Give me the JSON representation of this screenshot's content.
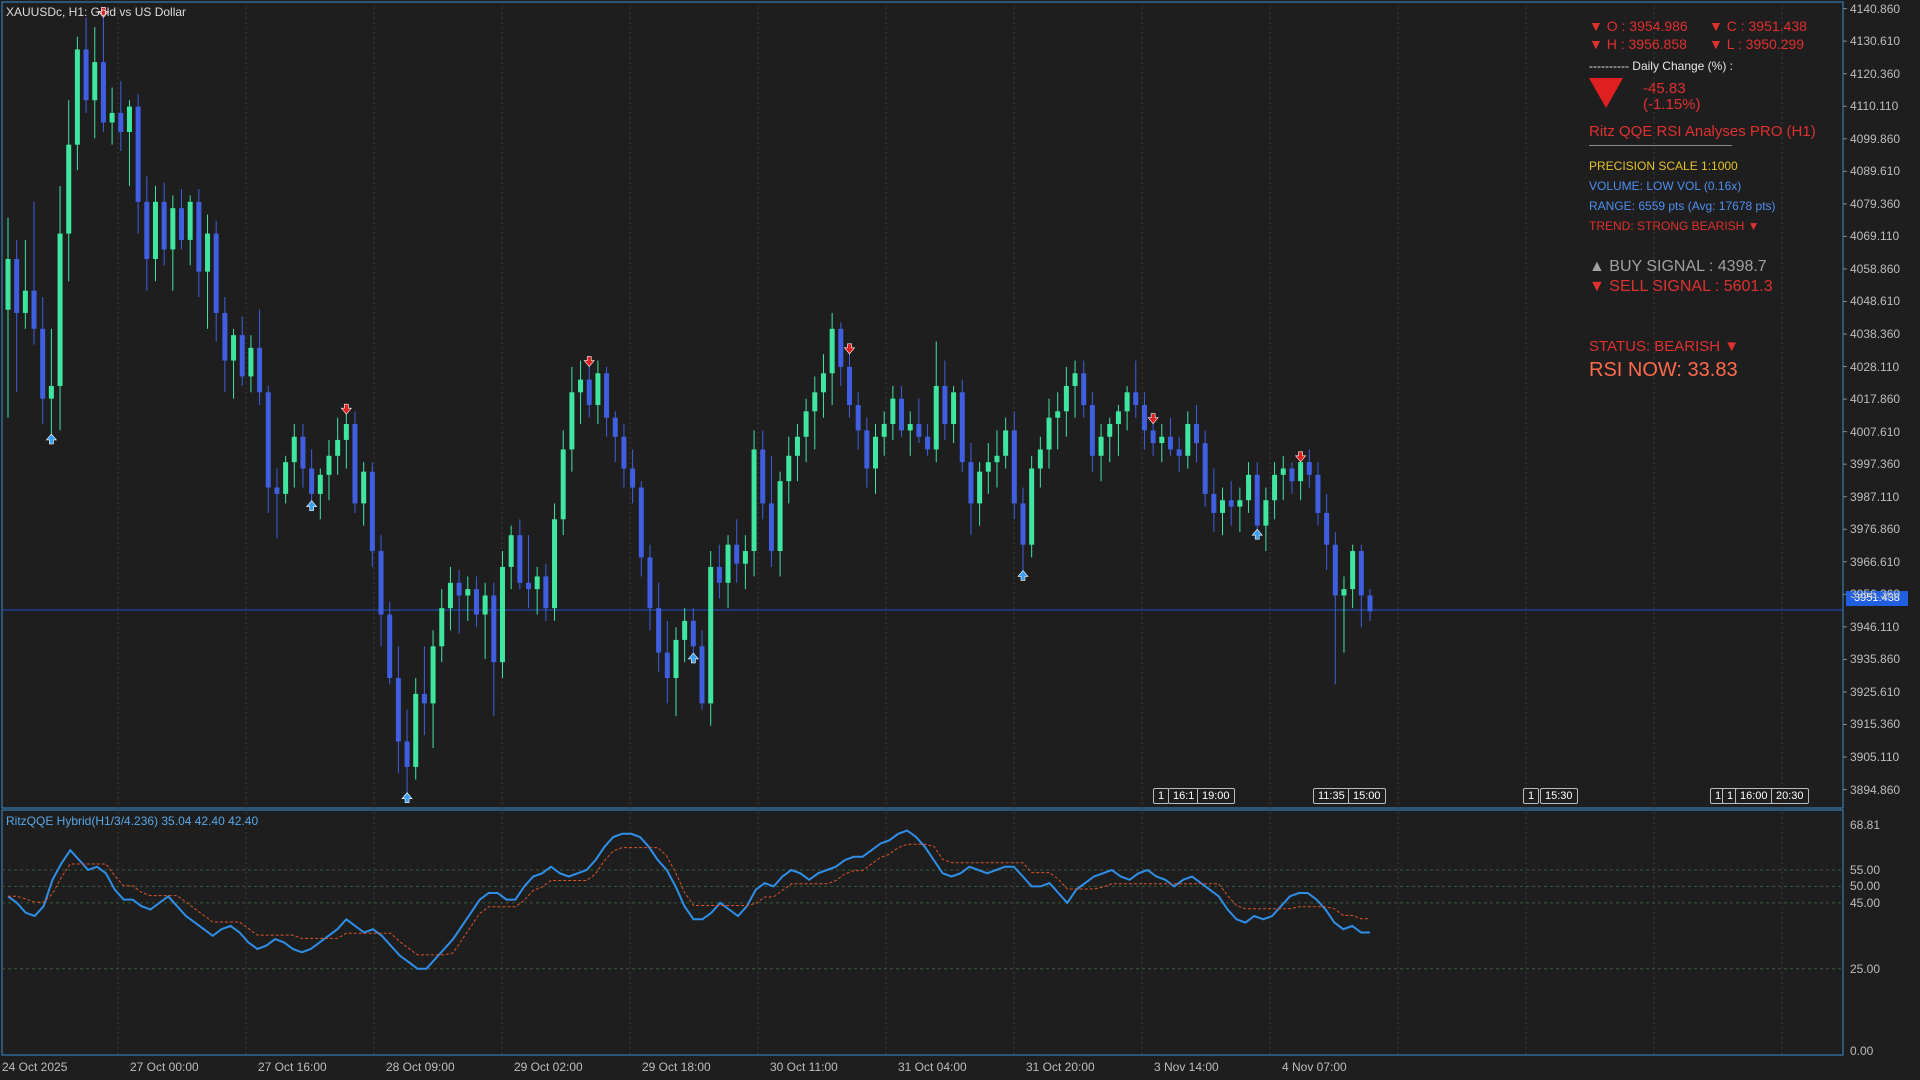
{
  "symbol_title": "XAUUSDc, H1:  Gold vs US Dollar",
  "indicator_title": "RitzQQE Hybrid(H1/3/4.236) 35.04 42.40 42.40",
  "ohlc": {
    "open": "▼ O : 3954.986",
    "close": "▼ C : 3951.438",
    "high": "▼ H : 3956.858",
    "low": "▼ L : 3950.299"
  },
  "daily_change": {
    "label": "----------  Daily Change (%) :",
    "value": "-45.83",
    "percent": "(-1.15%)"
  },
  "panel": {
    "title": "Ritz QQE RSI Analyses PRO (H1)",
    "precision": "PRECISION SCALE 1:1000",
    "volume": "VOLUME: LOW VOL (0.16x)",
    "range": "RANGE: 6559 pts (Avg: 17678 pts)",
    "trend": "TREND: STRONG BEARISH ▼",
    "buy_signal": "▲ BUY SIGNAL : 4398.7",
    "sell_signal": "▼ SELL SIGNAL : 5601.3",
    "status": "STATUS: BEARISH ▼",
    "rsi_now": "RSI NOW: 33.83"
  },
  "current_price": "3951.438",
  "price_ticks": [
    "4140.860",
    "4130.610",
    "4120.360",
    "4110.110",
    "4099.860",
    "4089.610",
    "4079.360",
    "4069.110",
    "4058.860",
    "4048.610",
    "4038.360",
    "4028.110",
    "4017.860",
    "4007.610",
    "3997.360",
    "3987.110",
    "3976.860",
    "3966.610",
    "3956.360",
    "3946.110",
    "3935.860",
    "3925.610",
    "3915.360",
    "3905.110",
    "3894.860"
  ],
  "indicator_ticks": [
    "68.81",
    "55.00",
    "50.00",
    "45.00",
    "25.00",
    "0.00"
  ],
  "time_ticks": [
    "24 Oct 2025",
    "27 Oct 00:00",
    "27 Oct 16:00",
    "28 Oct 09:00",
    "29 Oct 02:00",
    "29 Oct 18:00",
    "30 Oct 11:00",
    "31 Oct 04:00",
    "31 Oct 20:00",
    "3 Nov 14:00",
    "4 Nov 07:00"
  ],
  "event_tags": [
    "1",
    "16:1",
    "19:00",
    "11:35",
    "15:00",
    "1",
    "15:30",
    "1",
    "1",
    "16:00",
    "20:30"
  ],
  "colors": {
    "background": "#1e1e1e",
    "bull": "#3ee6a0",
    "bear": "#3f5fe0",
    "rsi_line": "#2f8fe8",
    "signal_line": "#d9532b",
    "accent_red": "#e03030"
  },
  "chart_data": {
    "type": "candlestick",
    "ylim": [
      3890,
      4142
    ],
    "bars": [
      [
        4046,
        4075,
        4012,
        4062
      ],
      [
        4062,
        4068,
        4020,
        4045
      ],
      [
        4045,
        4068,
        4040,
        4052
      ],
      [
        4052,
        4080,
        4035,
        4040
      ],
      [
        4040,
        4050,
        4010,
        4018
      ],
      [
        4018,
        4040,
        4005,
        4022
      ],
      [
        4022,
        4085,
        4008,
        4070
      ],
      [
        4070,
        4112,
        4055,
        4098
      ],
      [
        4098,
        4132,
        4090,
        4128
      ],
      [
        4128,
        4138,
        4108,
        4112
      ],
      [
        4112,
        4135,
        4100,
        4124
      ],
      [
        4124,
        4140,
        4102,
        4105
      ],
      [
        4105,
        4116,
        4098,
        4108
      ],
      [
        4108,
        4118,
        4096,
        4102
      ],
      [
        4102,
        4112,
        4085,
        4110
      ],
      [
        4110,
        4114,
        4070,
        4080
      ],
      [
        4080,
        4088,
        4052,
        4062
      ],
      [
        4062,
        4085,
        4055,
        4080
      ],
      [
        4080,
        4086,
        4060,
        4065
      ],
      [
        4065,
        4082,
        4052,
        4078
      ],
      [
        4078,
        4084,
        4065,
        4068
      ],
      [
        4068,
        4082,
        4060,
        4080
      ],
      [
        4080,
        4084,
        4050,
        4058
      ],
      [
        4058,
        4076,
        4040,
        4070
      ],
      [
        4070,
        4074,
        4036,
        4045
      ],
      [
        4045,
        4050,
        4020,
        4030
      ],
      [
        4030,
        4040,
        4018,
        4038
      ],
      [
        4038,
        4044,
        4022,
        4025
      ],
      [
        4025,
        4038,
        4020,
        4034
      ],
      [
        4034,
        4046,
        4016,
        4020
      ],
      [
        4020,
        4022,
        3982,
        3990
      ],
      [
        3990,
        3996,
        3974,
        3988
      ],
      [
        3988,
        4000,
        3985,
        3998
      ],
      [
        3998,
        4010,
        3990,
        4006
      ],
      [
        4006,
        4010,
        3990,
        3996
      ],
      [
        3996,
        4002,
        3984,
        3988
      ],
      [
        3988,
        3996,
        3980,
        3994
      ],
      [
        3994,
        4005,
        3986,
        4000
      ],
      [
        4000,
        4012,
        3994,
        4005
      ],
      [
        4005,
        4015,
        3996,
        4010
      ],
      [
        4010,
        4014,
        3982,
        3985
      ],
      [
        3985,
        3998,
        3978,
        3995
      ],
      [
        3995,
        3998,
        3965,
        3970
      ],
      [
        3970,
        3975,
        3940,
        3950
      ],
      [
        3950,
        3954,
        3928,
        3930
      ],
      [
        3930,
        3940,
        3900,
        3910
      ],
      [
        3910,
        3920,
        3892,
        3902
      ],
      [
        3902,
        3930,
        3898,
        3925
      ],
      [
        3925,
        3940,
        3912,
        3922
      ],
      [
        3922,
        3945,
        3908,
        3940
      ],
      [
        3940,
        3958,
        3935,
        3952
      ],
      [
        3952,
        3965,
        3945,
        3960
      ],
      [
        3960,
        3964,
        3944,
        3956
      ],
      [
        3956,
        3962,
        3948,
        3958
      ],
      [
        3958,
        3962,
        3946,
        3950
      ],
      [
        3950,
        3960,
        3936,
        3956
      ],
      [
        3956,
        3960,
        3918,
        3935
      ],
      [
        3935,
        3970,
        3930,
        3965
      ],
      [
        3965,
        3978,
        3958,
        3975
      ],
      [
        3975,
        3980,
        3958,
        3960
      ],
      [
        3960,
        3975,
        3952,
        3958
      ],
      [
        3958,
        3965,
        3950,
        3962
      ],
      [
        3962,
        3966,
        3948,
        3952
      ],
      [
        3952,
        3985,
        3948,
        3980
      ],
      [
        3980,
        4008,
        3975,
        4002
      ],
      [
        4002,
        4028,
        3995,
        4020
      ],
      [
        4020,
        4030,
        4010,
        4024
      ],
      [
        4024,
        4030,
        4012,
        4016
      ],
      [
        4016,
        4030,
        4010,
        4026
      ],
      [
        4026,
        4028,
        4006,
        4012
      ],
      [
        4012,
        4014,
        3998,
        4006
      ],
      [
        4006,
        4010,
        3990,
        3996
      ],
      [
        3996,
        4002,
        3985,
        3990
      ],
      [
        3990,
        3992,
        3962,
        3968
      ],
      [
        3968,
        3972,
        3945,
        3952
      ],
      [
        3952,
        3960,
        3932,
        3938
      ],
      [
        3938,
        3948,
        3922,
        3930
      ],
      [
        3930,
        3946,
        3918,
        3942
      ],
      [
        3942,
        3952,
        3935,
        3948
      ],
      [
        3948,
        3952,
        3936,
        3940
      ],
      [
        3940,
        3945,
        3920,
        3922
      ],
      [
        3922,
        3970,
        3915,
        3965
      ],
      [
        3965,
        3972,
        3955,
        3960
      ],
      [
        3960,
        3975,
        3952,
        3972
      ],
      [
        3972,
        3980,
        3960,
        3966
      ],
      [
        3966,
        3975,
        3958,
        3970
      ],
      [
        3970,
        4008,
        3962,
        4002
      ],
      [
        4002,
        4008,
        3980,
        3985
      ],
      [
        3985,
        4000,
        3965,
        3970
      ],
      [
        3970,
        3995,
        3962,
        3992
      ],
      [
        3992,
        4006,
        3985,
        4000
      ],
      [
        4000,
        4010,
        3992,
        4006
      ],
      [
        4006,
        4018,
        3998,
        4014
      ],
      [
        4014,
        4025,
        4002,
        4020
      ],
      [
        4020,
        4032,
        4012,
        4026
      ],
      [
        4026,
        4045,
        4016,
        4040
      ],
      [
        4040,
        4042,
        4022,
        4028
      ],
      [
        4028,
        4034,
        4012,
        4016
      ],
      [
        4016,
        4020,
        4002,
        4008
      ],
      [
        4008,
        4012,
        3990,
        3996
      ],
      [
        3996,
        4010,
        3988,
        4006
      ],
      [
        4006,
        4014,
        4000,
        4010
      ],
      [
        4010,
        4022,
        4005,
        4018
      ],
      [
        4018,
        4022,
        4006,
        4008
      ],
      [
        4008,
        4014,
        4000,
        4010
      ],
      [
        4010,
        4018,
        4004,
        4006
      ],
      [
        4006,
        4010,
        4000,
        4002
      ],
      [
        4002,
        4036,
        3998,
        4022
      ],
      [
        4022,
        4030,
        4005,
        4010
      ],
      [
        4010,
        4022,
        4004,
        4020
      ],
      [
        4020,
        4024,
        3995,
        3998
      ],
      [
        3998,
        4004,
        3975,
        3985
      ],
      [
        3985,
        3998,
        3978,
        3995
      ],
      [
        3995,
        4004,
        3988,
        3998
      ],
      [
        3998,
        4008,
        3990,
        4000
      ],
      [
        4000,
        4012,
        3996,
        4008
      ],
      [
        4008,
        4014,
        3980,
        3985
      ],
      [
        3985,
        3990,
        3962,
        3972
      ],
      [
        3972,
        4000,
        3968,
        3996
      ],
      [
        3996,
        4006,
        3990,
        4002
      ],
      [
        4002,
        4018,
        3996,
        4012
      ],
      [
        4012,
        4020,
        4002,
        4014
      ],
      [
        4014,
        4028,
        4006,
        4022
      ],
      [
        4022,
        4030,
        4012,
        4026
      ],
      [
        4026,
        4030,
        4012,
        4016
      ],
      [
        4016,
        4020,
        3995,
        4000
      ],
      [
        4000,
        4010,
        3992,
        4006
      ],
      [
        4006,
        4012,
        3998,
        4010
      ],
      [
        4010,
        4016,
        4000,
        4014
      ],
      [
        4014,
        4022,
        4008,
        4020
      ],
      [
        4020,
        4030,
        4012,
        4016
      ],
      [
        4016,
        4020,
        4002,
        4008
      ],
      [
        4008,
        4012,
        4000,
        4004
      ],
      [
        4004,
        4010,
        3998,
        4006
      ],
      [
        4006,
        4012,
        4000,
        4002
      ],
      [
        4002,
        4006,
        3995,
        4000
      ],
      [
        4000,
        4014,
        3996,
        4010
      ],
      [
        4010,
        4016,
        3998,
        4004
      ],
      [
        4004,
        4008,
        3984,
        3988
      ],
      [
        3988,
        3996,
        3976,
        3982
      ],
      [
        3982,
        3990,
        3975,
        3986
      ],
      [
        3986,
        3992,
        3978,
        3984
      ],
      [
        3984,
        3990,
        3976,
        3986
      ],
      [
        3986,
        3998,
        3982,
        3994
      ],
      [
        3994,
        3998,
        3975,
        3978
      ],
      [
        3978,
        3990,
        3970,
        3986
      ],
      [
        3986,
        3998,
        3980,
        3994
      ],
      [
        3994,
        4000,
        3986,
        3996
      ],
      [
        3996,
        3998,
        3988,
        3992
      ],
      [
        3992,
        4000,
        3986,
        3998
      ],
      [
        3998,
        4002,
        3990,
        3994
      ],
      [
        3994,
        3998,
        3978,
        3982
      ],
      [
        3982,
        3988,
        3964,
        3972
      ],
      [
        3972,
        3976,
        3928,
        3956
      ],
      [
        3956,
        3962,
        3938,
        3958
      ],
      [
        3958,
        3972,
        3952,
        3970
      ],
      [
        3970,
        3972,
        3946,
        3956
      ],
      [
        3956,
        3958,
        3948,
        3951
      ]
    ],
    "rsi": [
      47,
      45,
      42,
      41,
      44,
      52,
      57,
      61,
      58,
      55,
      56,
      54,
      49,
      46,
      46,
      44,
      43,
      45,
      47,
      44,
      41,
      39,
      37,
      35,
      37,
      38,
      36,
      33,
      31,
      32,
      34,
      33,
      31,
      30,
      31,
      33,
      35,
      37,
      40,
      38,
      36,
      37,
      35,
      32,
      29,
      27,
      25,
      25,
      28,
      31,
      34,
      38,
      42,
      46,
      48,
      48,
      46,
      46,
      50,
      53,
      54,
      56,
      54,
      53,
      54,
      55,
      58,
      62,
      65,
      66,
      66,
      65,
      62,
      58,
      55,
      50,
      44,
      40,
      40,
      42,
      45,
      43,
      41,
      44,
      49,
      51,
      50,
      53,
      55,
      54,
      52,
      54,
      55,
      56,
      58,
      59,
      59,
      61,
      63,
      64,
      66,
      67,
      65,
      62,
      58,
      54,
      53,
      54,
      56,
      55,
      54,
      55,
      56,
      56,
      53,
      50,
      50,
      51,
      48,
      45,
      49,
      51,
      53,
      54,
      55,
      53,
      52,
      54,
      55,
      53,
      52,
      50,
      52,
      53,
      51,
      49,
      47,
      43,
      40,
      39,
      41,
      40,
      41,
      44,
      47,
      48,
      48,
      46,
      43,
      39,
      37,
      38,
      36,
      36
    ]
  },
  "signals": {
    "buy": [
      5,
      35,
      46,
      79,
      117,
      144
    ],
    "sell": [
      11,
      39,
      67,
      97,
      132,
      149
    ]
  }
}
